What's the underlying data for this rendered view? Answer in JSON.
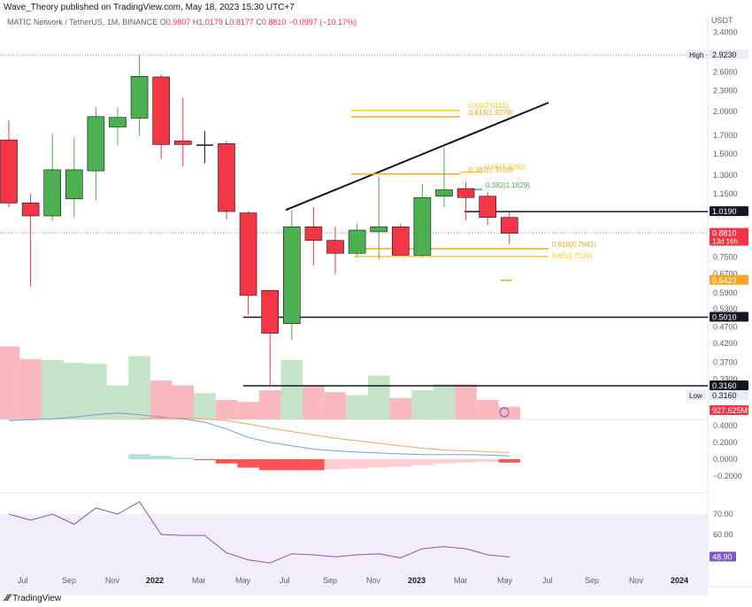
{
  "header": {
    "publisher": "Wave_Theory published on TradingView.com, May 18, 2023 15:30 UTC+7"
  },
  "symbol": {
    "name": "MATIC Network / TetherUS, 1M, BINANCE",
    "open_label": "O",
    "open": "0.9807",
    "high_label": "H",
    "high": "1.0179",
    "low_label": "L",
    "low": "0.8177",
    "close_label": "C",
    "close": "0.8810",
    "change": "−0.0997 (−10.17%)"
  },
  "footer": {
    "brand": "TradingView"
  },
  "colors": {
    "up": "#4caf50",
    "down": "#f23645",
    "doji": "#131722",
    "fib_yellow": "#f5d01a",
    "fib_orange": "#f5a623",
    "fib_green": "#4caf50",
    "volume_up": "#c5e3c6",
    "volume_down": "#f9b8bf",
    "macd_line": "#6e9be6",
    "signal_line": "#f7a35c",
    "rsi_line": "#7e57c2",
    "rsi_band": "#f3eefc"
  },
  "chart_data": [
    {
      "type": "candlestick",
      "currency": "USDT",
      "scale": "log",
      "price_ticks": [
        "3.4000",
        "2.6000",
        "2.3000",
        "2.0000",
        "1.7000",
        "1.5000",
        "1.3000",
        "1.1500",
        "0.7500",
        "0.6700",
        "0.5900",
        "0.5300",
        "0.4700",
        "0.4200",
        "0.3700",
        "0.3300"
      ],
      "x_ticks": [
        "Jul",
        "Sep",
        "Nov",
        "2022",
        "Mar",
        "May",
        "Jul",
        "Sep",
        "Nov",
        "2023",
        "Mar",
        "May",
        "Jul",
        "Sep",
        "Nov",
        "2024"
      ],
      "candles": [
        {
          "open": 1.65,
          "high": 1.88,
          "low": 1.05,
          "close": 1.08
        },
        {
          "open": 1.08,
          "high": 1.15,
          "low": 0.615,
          "close": 0.99
        },
        {
          "open": 0.99,
          "high": 1.72,
          "low": 0.96,
          "close": 1.35
        },
        {
          "open": 1.11,
          "high": 1.68,
          "low": 0.98,
          "close": 1.35
        },
        {
          "open": 1.34,
          "high": 2.05,
          "low": 1.1,
          "close": 1.93
        },
        {
          "open": 1.8,
          "high": 2.05,
          "low": 1.59,
          "close": 1.92
        },
        {
          "open": 1.91,
          "high": 2.92,
          "low": 1.7,
          "close": 2.53
        },
        {
          "open": 2.52,
          "high": 2.56,
          "low": 1.45,
          "close": 1.6
        },
        {
          "open": 1.64,
          "high": 2.19,
          "low": 1.38,
          "close": 1.6
        },
        {
          "open": 1.6,
          "high": 1.75,
          "low": 1.41,
          "close": 1.6
        },
        {
          "open": 1.61,
          "high": 1.64,
          "low": 0.97,
          "close": 1.02
        },
        {
          "open": 1.01,
          "high": 1.02,
          "low": 0.51,
          "close": 0.58
        },
        {
          "open": 0.6,
          "high": 0.6,
          "low": 0.316,
          "close": 0.45
        },
        {
          "open": 0.48,
          "high": 1.03,
          "low": 0.43,
          "close": 0.92
        },
        {
          "open": 0.92,
          "high": 1.05,
          "low": 0.71,
          "close": 0.84
        },
        {
          "open": 0.84,
          "high": 0.92,
          "low": 0.67,
          "close": 0.77
        },
        {
          "open": 0.77,
          "high": 0.94,
          "low": 0.75,
          "close": 0.9
        },
        {
          "open": 0.89,
          "high": 1.29,
          "low": 0.74,
          "close": 0.92
        },
        {
          "open": 0.92,
          "high": 0.94,
          "low": 0.76,
          "close": 0.76
        },
        {
          "open": 0.76,
          "high": 1.23,
          "low": 0.75,
          "close": 1.12
        },
        {
          "open": 1.13,
          "high": 1.57,
          "low": 1.05,
          "close": 1.18
        },
        {
          "open": 1.19,
          "high": 1.24,
          "low": 0.96,
          "close": 1.12
        },
        {
          "open": 1.13,
          "high": 1.16,
          "low": 0.93,
          "close": 0.98
        },
        {
          "open": 0.98,
          "high": 1.018,
          "low": 0.818,
          "close": 0.881
        }
      ],
      "horizontal_levels": [
        {
          "price": 1.019,
          "label": "1.0190"
        },
        {
          "price": 0.501,
          "label": "0.5010"
        },
        {
          "price": 0.316,
          "label": "0.3160"
        }
      ],
      "fib_levels": [
        {
          "label": "0.65(2.0111)",
          "price": 2.0111,
          "color": "yellow"
        },
        {
          "label": "0.618(1.9278)",
          "price": 1.9278,
          "color": "orange"
        },
        {
          "label": "0.65(1.3292)",
          "price": 1.3292,
          "color": "yellow"
        },
        {
          "label": "0.382(1.3128)",
          "price": 1.3128,
          "color": "orange"
        },
        {
          "label": "0.382(1.1829)",
          "price": 1.1829,
          "color": "green"
        },
        {
          "label": "0.618(0.7941)",
          "price": 0.7941,
          "color": "orange"
        },
        {
          "label": "0.65(0.7539)",
          "price": 0.7539,
          "color": "yellow"
        }
      ],
      "trendline": {
        "from": {
          "price": 1.03
        },
        "to": {
          "price": 2.12
        }
      },
      "price_labels": [
        {
          "label": "2.9230",
          "tag": "High",
          "price": 2.923,
          "style": "plain"
        },
        {
          "label": "1.0190",
          "price": 1.019,
          "style": "black"
        },
        {
          "label": "0.8810",
          "extra": "13d 16h",
          "price": 0.881,
          "style": "red"
        },
        {
          "label": "0.6423",
          "price": 0.6423,
          "style": "orange"
        },
        {
          "label": "0.5010",
          "price": 0.501,
          "style": "black"
        },
        {
          "label": "0.3160",
          "price": 0.316,
          "style": "black"
        },
        {
          "label": "0.3160",
          "tag": "Low",
          "price": 0.316,
          "style": "plain"
        },
        {
          "label": "927.625M",
          "price": 0.305,
          "style": "red"
        }
      ],
      "volume": [
        0.75,
        0.62,
        0.61,
        0.58,
        0.57,
        0.35,
        0.65,
        0.4,
        0.35,
        0.27,
        0.2,
        0.18,
        0.3,
        0.61,
        0.35,
        0.28,
        0.25,
        0.45,
        0.22,
        0.3,
        0.36,
        0.36,
        0.2,
        0.13
      ]
    },
    {
      "type": "macd",
      "y_ticks": [
        "0.4000",
        "0.2000",
        "0.0000",
        "−0.2000"
      ],
      "macd": [
        0.46,
        0.47,
        0.48,
        0.5,
        0.53,
        0.55,
        0.53,
        0.5,
        0.48,
        0.44,
        0.36,
        0.26,
        0.2,
        0.16,
        0.12,
        0.1,
        0.085,
        0.075,
        0.065,
        0.055,
        0.055,
        0.055,
        0.05,
        0.04
      ],
      "signal": [
        null,
        null,
        null,
        null,
        null,
        null,
        0.48,
        0.49,
        0.49,
        0.48,
        0.46,
        0.42,
        0.37,
        0.33,
        0.29,
        0.25,
        0.22,
        0.19,
        0.16,
        0.13,
        0.11,
        0.1,
        0.09,
        0.08
      ],
      "histogram": [
        null,
        null,
        null,
        null,
        null,
        null,
        0.06,
        0.04,
        0.02,
        -0.01,
        -0.05,
        -0.1,
        -0.13,
        -0.13,
        -0.13,
        -0.12,
        -0.11,
        -0.1,
        -0.09,
        -0.07,
        -0.05,
        -0.04,
        -0.03,
        -0.04
      ]
    },
    {
      "type": "rsi",
      "y_ticks": [
        "70.00",
        "60.00"
      ],
      "band": [
        30,
        70
      ],
      "values": [
        70,
        67,
        70,
        65,
        73,
        70,
        76,
        60,
        59.5,
        59.5,
        51,
        47.5,
        46,
        50.5,
        50,
        49,
        50,
        50.5,
        48.5,
        53,
        54,
        53,
        50,
        48.9
      ],
      "last_label": "48.90"
    }
  ]
}
